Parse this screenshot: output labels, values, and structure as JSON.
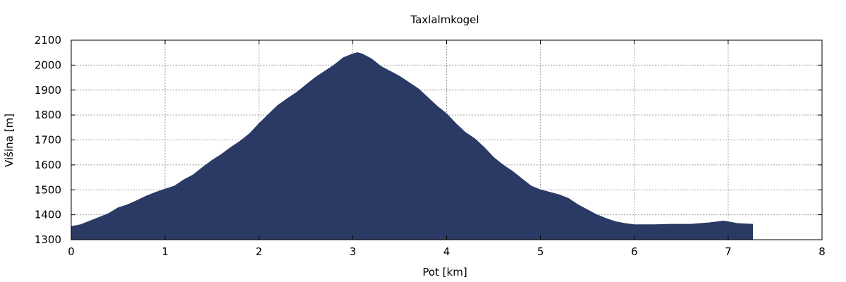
{
  "chart_data": {
    "type": "area",
    "title": "Taxlalmkogel",
    "xlabel": "Pot [km]",
    "ylabel": "Višina [m]",
    "xlim": [
      0,
      8
    ],
    "ylim": [
      1300,
      2100
    ],
    "x_ticks": [
      "0",
      "1",
      "2",
      "3",
      "4",
      "5",
      "6",
      "7",
      "8"
    ],
    "y_ticks": [
      "1300",
      "1400",
      "1500",
      "1600",
      "1700",
      "1800",
      "1900",
      "2000",
      "2100"
    ],
    "grid": true,
    "fill_color": "#2b3a64",
    "series": [
      {
        "x": [
          0,
          0.1,
          0.2,
          0.3,
          0.4,
          0.5,
          0.6,
          0.7,
          0.8,
          0.9,
          1.0,
          1.1,
          1.2,
          1.3,
          1.4,
          1.5,
          1.6,
          1.7,
          1.8,
          1.9,
          2.0,
          2.1,
          2.2,
          2.3,
          2.4,
          2.5,
          2.6,
          2.7,
          2.8,
          2.9,
          3.0,
          3.05,
          3.1,
          3.2,
          3.3,
          3.4,
          3.5,
          3.6,
          3.7,
          3.8,
          3.9,
          4.0,
          4.1,
          4.2,
          4.3,
          4.4,
          4.5,
          4.6,
          4.7,
          4.8,
          4.9,
          5.0,
          5.1,
          5.2,
          5.3,
          5.4,
          5.5,
          5.6,
          5.7,
          5.8,
          5.9,
          6.0,
          6.2,
          6.4,
          6.6,
          6.8,
          6.95,
          7.1,
          7.26
        ],
        "y": [
          1353,
          1360,
          1375,
          1390,
          1405,
          1428,
          1440,
          1457,
          1475,
          1490,
          1503,
          1515,
          1540,
          1560,
          1590,
          1618,
          1642,
          1670,
          1695,
          1725,
          1765,
          1802,
          1838,
          1865,
          1890,
          1920,
          1950,
          1975,
          2000,
          2030,
          2045,
          2050,
          2045,
          2025,
          1995,
          1975,
          1955,
          1930,
          1905,
          1870,
          1835,
          1805,
          1765,
          1730,
          1705,
          1670,
          1630,
          1600,
          1575,
          1545,
          1515,
          1500,
          1490,
          1480,
          1465,
          1440,
          1420,
          1400,
          1385,
          1372,
          1365,
          1360,
          1360,
          1362,
          1362,
          1368,
          1375,
          1365,
          1362
        ]
      }
    ]
  }
}
